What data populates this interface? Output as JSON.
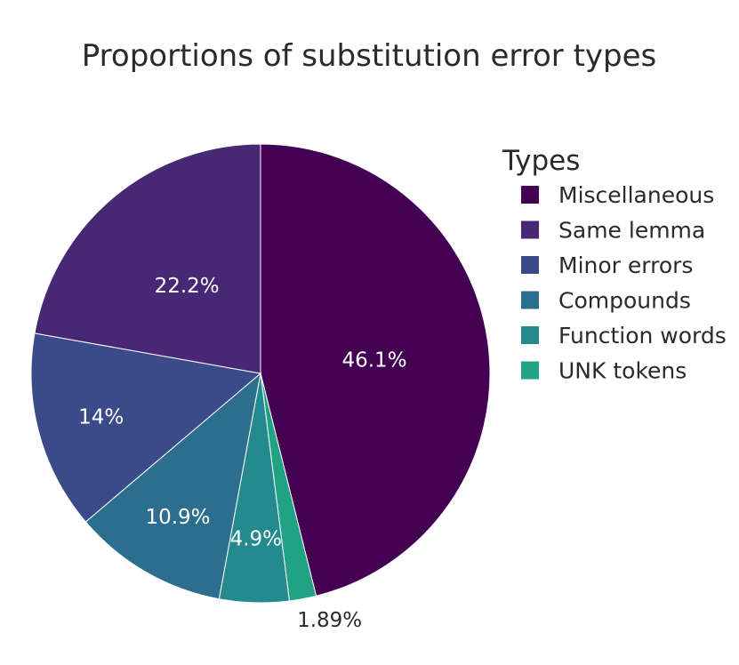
{
  "chart_data": {
    "type": "pie",
    "title": "Proportions of substitution error types",
    "legend_title": "Types",
    "legend_position": "right",
    "slices": [
      {
        "label": "Miscellaneous",
        "value": 46.1,
        "text": "46.1%",
        "color": "#440154"
      },
      {
        "label": "UNK tokens",
        "value": 1.89,
        "text": "1.89%",
        "color": "#22a284"
      },
      {
        "label": "Function words",
        "value": 4.9,
        "text": "4.9%",
        "color": "#238a8d"
      },
      {
        "label": "Compounds",
        "value": 10.9,
        "text": "10.9%",
        "color": "#2c6e8e"
      },
      {
        "label": "Minor errors",
        "value": 14,
        "text": "14%",
        "color": "#3b4b8a"
      },
      {
        "label": "Same lemma",
        "value": 22.2,
        "text": "22.2%",
        "color": "#482874"
      }
    ],
    "legend_order": [
      "Miscellaneous",
      "Same lemma",
      "Minor errors",
      "Compounds",
      "Function words",
      "UNK tokens"
    ]
  }
}
